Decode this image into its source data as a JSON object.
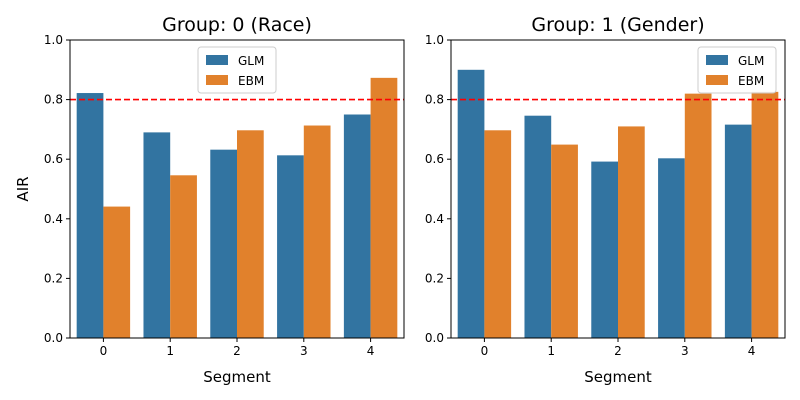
{
  "chart_data": [
    {
      "type": "bar",
      "title": "Group: 0 (Race)",
      "xlabel": "Segment",
      "ylabel": "AIR",
      "categories": [
        "0",
        "1",
        "2",
        "3",
        "4"
      ],
      "ylim": [
        0,
        1.0
      ],
      "yticks": [
        "0.0",
        "0.2",
        "0.4",
        "0.6",
        "0.8",
        "1.0"
      ],
      "series": [
        {
          "name": "GLM",
          "color": "#3274a1",
          "values": [
            0.822,
            0.69,
            0.632,
            0.613,
            0.75
          ]
        },
        {
          "name": "EBM",
          "color": "#e1812c",
          "values": [
            0.441,
            0.546,
            0.697,
            0.713,
            0.873
          ]
        }
      ],
      "reference_line": {
        "value": 0.8,
        "color": "#ff0000",
        "style": "dashed"
      },
      "legend": "top-center",
      "grid": false
    },
    {
      "type": "bar",
      "title": "Group: 1 (Gender)",
      "xlabel": "Segment",
      "ylabel": "",
      "categories": [
        "0",
        "1",
        "2",
        "3",
        "4"
      ],
      "ylim": [
        0,
        1.0
      ],
      "yticks": [
        "0.0",
        "0.2",
        "0.4",
        "0.6",
        "0.8",
        "1.0"
      ],
      "series": [
        {
          "name": "GLM",
          "color": "#3274a1",
          "values": [
            0.9,
            0.746,
            0.592,
            0.603,
            0.716
          ]
        },
        {
          "name": "EBM",
          "color": "#e1812c",
          "values": [
            0.697,
            0.649,
            0.71,
            0.82,
            0.826
          ]
        }
      ],
      "reference_line": {
        "value": 0.8,
        "color": "#ff0000",
        "style": "dashed"
      },
      "legend": "top-right",
      "grid": false
    }
  ]
}
